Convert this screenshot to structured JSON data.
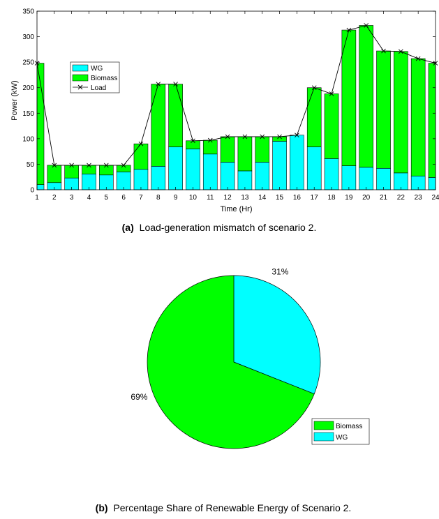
{
  "chart_data": [
    {
      "type": "bar",
      "stacked": true,
      "xlabel": "Time (Hr)",
      "ylabel": "Power (kW)",
      "ylim": [
        0,
        350
      ],
      "yticks": [
        0,
        50,
        100,
        150,
        200,
        250,
        300,
        350
      ],
      "categories": [
        "1",
        "2",
        "3",
        "4",
        "5",
        "6",
        "7",
        "8",
        "9",
        "10",
        "11",
        "12",
        "13",
        "14",
        "15",
        "16",
        "17",
        "18",
        "19",
        "20",
        "21",
        "22",
        "23",
        "24"
      ],
      "series": [
        {
          "name": "WG",
          "color": "#00ffff",
          "values": [
            10,
            14,
            23,
            31,
            29,
            35,
            40,
            46,
            84,
            80,
            70,
            54,
            37,
            54,
            95,
            107,
            84,
            61,
            47,
            44,
            42,
            33,
            27,
            24
          ]
        },
        {
          "name": "Biomass",
          "color": "#00ff00",
          "values": [
            238,
            34,
            25,
            17,
            19,
            13,
            50,
            161,
            123,
            16,
            27,
            50,
            67,
            50,
            9,
            0,
            116,
            127,
            266,
            278,
            230,
            238,
            230,
            224
          ]
        }
      ],
      "line": {
        "name": "Load",
        "marker": "x",
        "color": "#000000",
        "values": [
          248,
          48,
          48,
          48,
          48,
          48,
          90,
          207,
          207,
          96,
          97,
          104,
          104,
          104,
          104,
          107,
          200,
          188,
          313,
          322,
          272,
          271,
          257,
          248
        ]
      },
      "legend_position": "upper-left",
      "caption_bold": "(a)",
      "caption": "Load-generation mismatch of scenario 2.",
      "grid": false
    },
    {
      "type": "pie",
      "slices": [
        {
          "name": "Biomass",
          "value": 69,
          "label": "69%",
          "color": "#00ff00"
        },
        {
          "name": "WG",
          "value": 31,
          "label": "31%",
          "color": "#00ffff"
        }
      ],
      "legend_position": "lower-right",
      "caption_bold": "(b)",
      "caption": "Percentage Share of Renewable Energy of Scenario 2."
    }
  ]
}
